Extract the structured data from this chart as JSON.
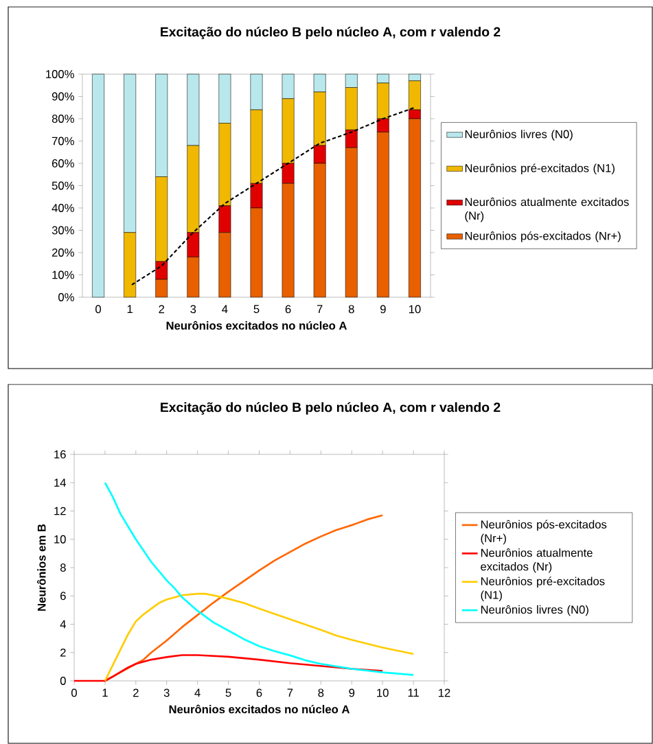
{
  "chart_data": [
    {
      "type": "bar",
      "title": "Excitação do núcleo B pelo núcleo A, com r valendo 2",
      "xlabel": "Neurônios excitados no núcleo A",
      "stacked": true,
      "legend": "right",
      "categories": [
        "0",
        "1",
        "2",
        "3",
        "4",
        "5",
        "6",
        "7",
        "8",
        "9",
        "10"
      ],
      "ylim": [
        0,
        100
      ],
      "yticks": [
        {
          "value": 0,
          "label": "0%"
        },
        {
          "value": 10,
          "label": "10%"
        },
        {
          "value": 20,
          "label": "20%"
        },
        {
          "value": 30,
          "label": "30%"
        },
        {
          "value": 40,
          "label": "40%"
        },
        {
          "value": 50,
          "label": "50%"
        },
        {
          "value": 60,
          "label": "60%"
        },
        {
          "value": 70,
          "label": "70%"
        },
        {
          "value": 80,
          "label": "80%"
        },
        {
          "value": 90,
          "label": "90%"
        },
        {
          "value": 100,
          "label": "100%"
        }
      ],
      "series": [
        {
          "name": "Neurônios pós-excitados (Nr+)",
          "color": "#e86000",
          "values": [
            0,
            0,
            8,
            18,
            29,
            40,
            51,
            60,
            67,
            74,
            80
          ]
        },
        {
          "name": "Neurônios atualmente excitados (Nr)",
          "color": "#e00000",
          "values": [
            0,
            0,
            8,
            11,
            12,
            11,
            9,
            8,
            8,
            6,
            4
          ]
        },
        {
          "name": "Neurônios pré-excitados (N1)",
          "color": "#f0b800",
          "values": [
            0,
            29,
            38,
            39,
            37,
            33,
            29,
            24,
            19,
            16,
            13
          ]
        },
        {
          "name": "Neurônios livres (N0)",
          "color": "#b8e8ec",
          "values": [
            100,
            71,
            46,
            32,
            22,
            16,
            11,
            8,
            6,
            4,
            3
          ]
        },
        {
          "type": "line",
          "color": "#000000",
          "line_style": "dashed",
          "values": [
            null,
            5,
            14,
            29,
            42,
            51,
            60,
            69,
            74,
            80,
            85
          ]
        }
      ]
    },
    {
      "type": "line",
      "title": "Excitação do núcleo B pelo núcleo A, com r valendo 2",
      "xlabel": "Neurônios excitados no núcleo A",
      "ylabel": "Neurônios em B",
      "legend": "right",
      "xlim": [
        0,
        12
      ],
      "xticks": [
        0,
        1,
        2,
        3,
        4,
        5,
        6,
        7,
        8,
        9,
        10,
        11,
        12
      ],
      "ylim": [
        0,
        16
      ],
      "yticks": [
        0,
        2,
        4,
        6,
        8,
        10,
        12,
        14,
        16
      ],
      "series": [
        {
          "name": "Neurônios pós-excitados (Nr+)",
          "color": "#ff6600",
          "x": [
            1,
            1.5,
            2,
            2.25,
            2.5,
            3,
            3.5,
            4,
            4.5,
            5,
            5.5,
            6,
            6.5,
            7,
            7.5,
            8,
            8.5,
            9,
            9.5,
            10
          ],
          "values": [
            0,
            0.6,
            1.2,
            1.5,
            2.0,
            2.85,
            3.8,
            4.65,
            5.5,
            6.3,
            7.05,
            7.8,
            8.5,
            9.1,
            9.7,
            10.2,
            10.65,
            11.0,
            11.4,
            11.7
          ]
        },
        {
          "name": "Neurônios atualmente excitados (Nr)",
          "color": "#ff0000",
          "x": [
            0,
            0.5,
            1,
            1.25,
            1.75,
            2,
            2.5,
            3,
            3.5,
            4,
            5,
            6,
            7,
            8,
            9,
            10
          ],
          "values": [
            0,
            0,
            0,
            0.3,
            0.95,
            1.2,
            1.5,
            1.68,
            1.82,
            1.82,
            1.7,
            1.5,
            1.25,
            1.05,
            0.85,
            0.7
          ]
        },
        {
          "name": "Neurônios pré-excitados (N1)",
          "color": "#ffcc00",
          "x": [
            1,
            1.25,
            1.5,
            1.75,
            2,
            2.25,
            2.5,
            2.75,
            3,
            3.5,
            4,
            4.25,
            4.5,
            5,
            5.5,
            6,
            7,
            8,
            8.5,
            9,
            10,
            11
          ],
          "values": [
            0,
            1.1,
            2.2,
            3.3,
            4.2,
            4.7,
            5.1,
            5.5,
            5.75,
            6.05,
            6.15,
            6.15,
            6.05,
            5.8,
            5.5,
            5.1,
            4.35,
            3.6,
            3.2,
            2.9,
            2.35,
            1.9
          ]
        },
        {
          "name": "Neurônios livres (N0)",
          "color": "#00ffff",
          "x": [
            1,
            1.25,
            1.5,
            2,
            2.5,
            3,
            3.25,
            3.5,
            4,
            4.5,
            5,
            5.5,
            6,
            6.5,
            7,
            7.5,
            8,
            9,
            10,
            11
          ],
          "values": [
            14,
            13,
            11.8,
            10,
            8.4,
            7.1,
            6.55,
            5.9,
            4.95,
            4.15,
            3.55,
            2.95,
            2.45,
            2.1,
            1.8,
            1.45,
            1.2,
            0.85,
            0.6,
            0.42
          ]
        }
      ]
    }
  ]
}
